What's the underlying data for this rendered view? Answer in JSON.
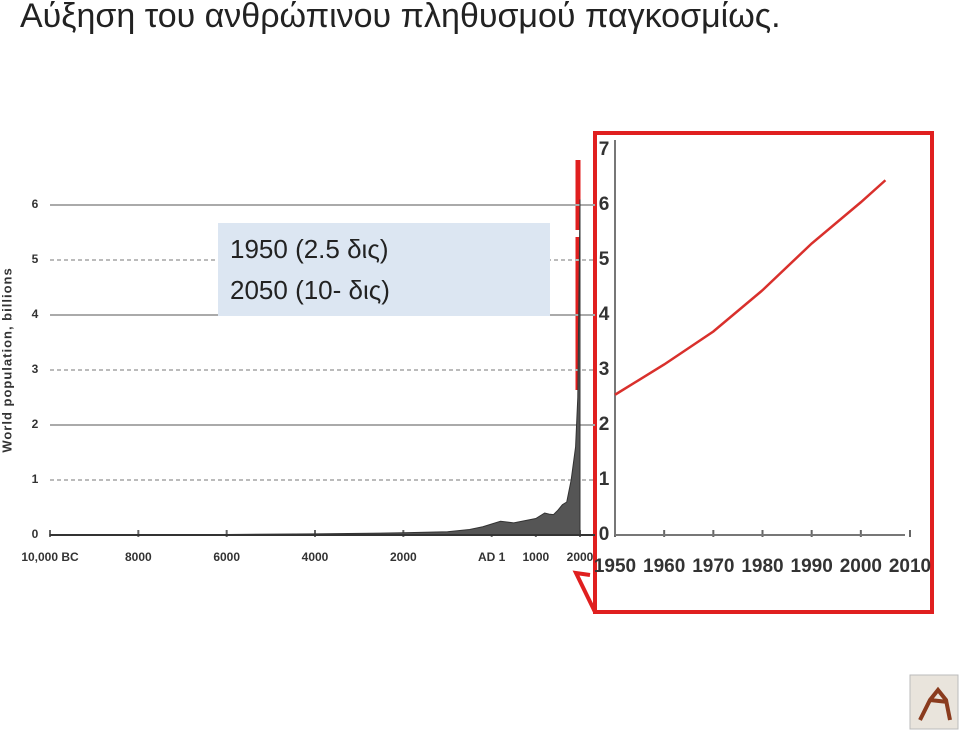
{
  "title": "Αύξηση του ανθρώπινου πληθυσμού παγκοσμίως.",
  "callout": [
    "1950 (2.5  δις)",
    "2050 (10- δις)"
  ],
  "chart_data": [
    {
      "type": "area",
      "ylabel": "World population, billions",
      "x": [
        -10000,
        -8000,
        -6000,
        -4000,
        -2000,
        -1000,
        -500,
        -200,
        0,
        200,
        500,
        1000,
        1200,
        1300,
        1400,
        1500,
        1600,
        1700,
        1800,
        1900,
        1950,
        2000
      ],
      "series": [
        {
          "color": "#555555",
          "values": [
            0.004,
            0.005,
            0.01,
            0.02,
            0.04,
            0.06,
            0.1,
            0.15,
            0.2,
            0.25,
            0.22,
            0.3,
            0.4,
            0.38,
            0.37,
            0.45,
            0.55,
            0.6,
            1.0,
            1.6,
            2.5,
            6.1
          ]
        }
      ],
      "xlim": [
        -10000,
        2000
      ],
      "xticks": [
        {
          "value": -10000,
          "label": "10,000 BC"
        },
        {
          "value": -8000,
          "label": "8000"
        },
        {
          "value": -6000,
          "label": "6000"
        },
        {
          "value": -4000,
          "label": "4000"
        },
        {
          "value": -2000,
          "label": "2000"
        },
        {
          "value": 0,
          "label": "AD 1"
        },
        {
          "value": 1000,
          "label": "1000"
        },
        {
          "value": 2000,
          "label": "2000"
        }
      ],
      "ylim": [
        0,
        6
      ],
      "yticks": [
        0,
        1,
        2,
        3,
        4,
        5,
        6
      ],
      "grid": true
    },
    {
      "type": "line",
      "x": [
        1950,
        1960,
        1970,
        1980,
        1990,
        2000,
        2005
      ],
      "series": [
        {
          "color": "#d9302c",
          "values": [
            2.55,
            3.1,
            3.7,
            4.45,
            5.3,
            6.05,
            6.45
          ]
        }
      ],
      "xlim": [
        1950,
        2010
      ],
      "xticks": [
        1950,
        1960,
        1970,
        1980,
        1990,
        2000,
        2010
      ],
      "ylim": [
        0,
        7
      ],
      "yticks": [
        0,
        1,
        2,
        3,
        4,
        5,
        6,
        7
      ],
      "grid": false
    }
  ]
}
